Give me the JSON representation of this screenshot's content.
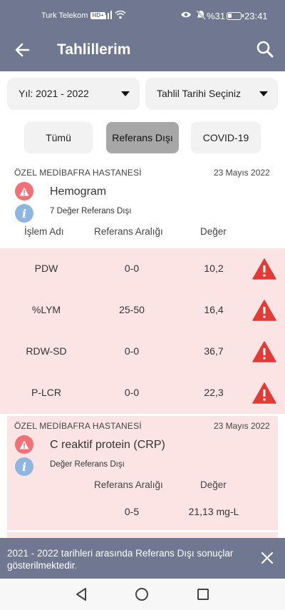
{
  "status_bar": {
    "carrier": "Turk Telekom",
    "network_badge": "HD+",
    "battery": "%31",
    "time": "23:41"
  },
  "app_bar": {
    "title": "Tahlillerim",
    "back_icon": "arrow-left-icon",
    "search_icon": "search-icon"
  },
  "filters": {
    "year_label": "Yıl: 2021 - 2022",
    "date_label": "Tahlil Tarihi Seçiniz"
  },
  "tabs": [
    {
      "label": "Tümü",
      "selected": false
    },
    {
      "label": "Referans Dışı",
      "selected": true
    },
    {
      "label": "COVID-19",
      "selected": false
    }
  ],
  "results": [
    {
      "hospital": "ÖZEL MEDİBAFRA HASTANESİ",
      "date": "23 Mayıs 2022",
      "test_name": "Hemogram",
      "subtitle": "7 Değer Referans Dışı",
      "headers": {
        "name": "İşlem Adı",
        "range": "Referans Aralığı",
        "value": "Değer"
      },
      "rows": [
        {
          "name": "PDW",
          "range": "0-0",
          "value": "10,2"
        },
        {
          "name": "%LYM",
          "range": "25-50",
          "value": "16,4"
        },
        {
          "name": "RDW-SD",
          "range": "0-0",
          "value": "36,7"
        },
        {
          "name": "P-LCR",
          "range": "0-0",
          "value": "22,3"
        }
      ]
    },
    {
      "hospital": "ÖZEL MEDİBAFRA HASTANESİ",
      "date": "23 Mayıs 2022",
      "test_name": "C reaktif protein (CRP)",
      "subtitle": "Değer Referans Dışı",
      "headers": {
        "range": "Referans Aralığı",
        "value": "Değer"
      },
      "rows": [
        {
          "range": "0-5",
          "value": "21,13 mg-L"
        }
      ]
    }
  ],
  "snackbar": {
    "message": "2021 - 2022 tarihleri arasında Referans Dışı sonuçlar gösterilmektedir."
  },
  "colors": {
    "primary": "#6f7890",
    "alert_bg": "#fce4e5",
    "warning": "#e53935"
  }
}
